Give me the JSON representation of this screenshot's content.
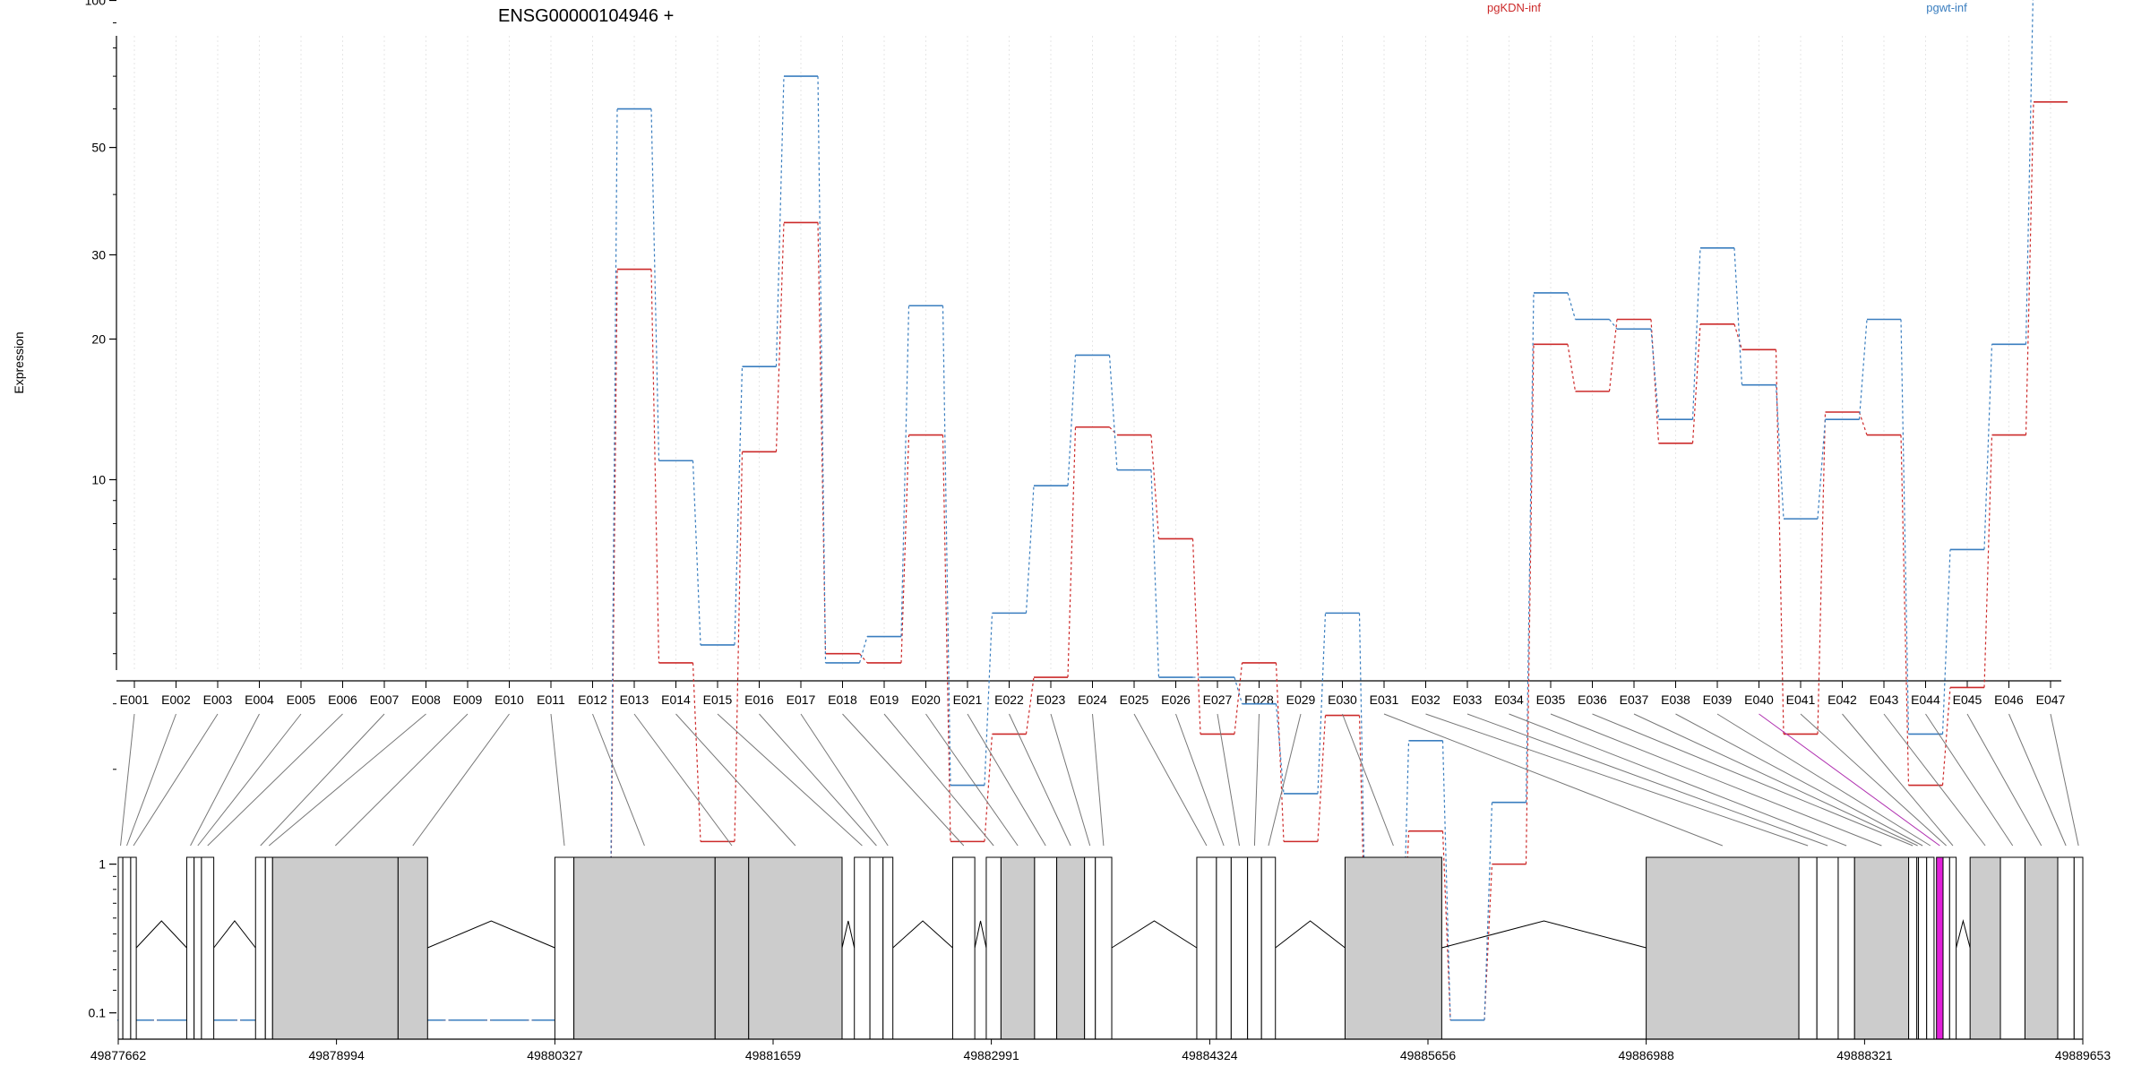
{
  "chart_data": {
    "type": "line",
    "title": "ENSG00000104946 +",
    "ylabel": "Expression",
    "xlabel": "",
    "y_scale": "log",
    "grid": true,
    "legend_placement": "top-right",
    "y_ticks": [
      {
        "value": 0.1,
        "label": "0.1"
      },
      {
        "value": 1,
        "label": "1"
      },
      {
        "value": 10,
        "label": "10"
      },
      {
        "value": 20,
        "label": "20"
      },
      {
        "value": 30,
        "label": "30"
      },
      {
        "value": 50,
        "label": "50"
      },
      {
        "value": 100,
        "label": "100"
      }
    ],
    "categories": [
      "E001",
      "E002",
      "E003",
      "E004",
      "E005",
      "E006",
      "E007",
      "E008",
      "E009",
      "E010",
      "E011",
      "E012",
      "E013",
      "E014",
      "E015",
      "E016",
      "E017",
      "E018",
      "E019",
      "E020",
      "E021",
      "E022",
      "E023",
      "E024",
      "E025",
      "E026",
      "E027",
      "E028",
      "E029",
      "E030",
      "E031",
      "E032",
      "E033",
      "E034",
      "E035",
      "E036",
      "E037",
      "E038",
      "E039",
      "E040",
      "E041",
      "E042",
      "E043",
      "E044",
      "E045",
      "E046",
      "E047"
    ],
    "series": [
      {
        "name": "pgKDN-inf",
        "color": "#cc2a2a",
        "values": [
          0.07,
          0.07,
          0.07,
          0.07,
          0.07,
          0.07,
          0.15,
          0.07,
          0.07,
          0.07,
          0.07,
          0.07,
          28,
          3.8,
          1.2,
          11.5,
          35,
          4,
          3.8,
          12.5,
          1.2,
          2.5,
          3.5,
          13,
          12.5,
          7.4,
          2.5,
          3.8,
          1.2,
          2.8,
          0.07,
          1.3,
          0.07,
          1,
          19.5,
          15.5,
          22,
          12,
          21.5,
          19,
          2.5,
          14,
          12.5,
          1.8,
          3.3,
          12.5,
          62
        ]
      },
      {
        "name": "pgwt-inf",
        "color": "#3a7ebf",
        "values": [
          0.07,
          0.07,
          0.07,
          0.07,
          0.07,
          0.07,
          0.07,
          0.07,
          0.07,
          0.07,
          0.07,
          0.07,
          60,
          11,
          4.2,
          17.5,
          70,
          3.8,
          4.4,
          23.5,
          1.8,
          5,
          9.7,
          18.5,
          10.5,
          3.5,
          3.5,
          3,
          1.7,
          5,
          0.07,
          2.4,
          0.07,
          1.6,
          25,
          22,
          21,
          13.5,
          31,
          16,
          8.2,
          13.5,
          22,
          2.5,
          7,
          19.5,
          115
        ]
      }
    ],
    "genomic_axis": {
      "tick_labels": [
        "49877662",
        "49878994",
        "49880327",
        "49881659",
        "49882991",
        "49884324",
        "49885656",
        "49886988",
        "49888321",
        "49889653"
      ],
      "tick_values": [
        49877662,
        49878994,
        49880327,
        49881659,
        49882991,
        49884324,
        49885656,
        49886988,
        49888321,
        49889653
      ],
      "exons": [
        [
          49877662,
          49877690
        ],
        [
          49877690,
          49877738
        ],
        [
          49877738,
          49877772
        ],
        [
          49878080,
          49878125
        ],
        [
          49878125,
          49878170
        ],
        [
          49878170,
          49878245
        ],
        [
          49878500,
          49878560
        ],
        [
          49878560,
          49878604
        ],
        [
          49878604,
          49879370
        ],
        [
          49879370,
          49879550
        ],
        [
          49880327,
          49880443
        ],
        [
          49880443,
          49881305
        ],
        [
          49881305,
          49881510
        ],
        [
          49881510,
          49882080
        ],
        [
          49882155,
          49882250
        ],
        [
          49882250,
          49882330
        ],
        [
          49882330,
          49882390
        ],
        [
          49882755,
          49882890
        ],
        [
          49882960,
          49883050
        ],
        [
          49883050,
          49883255
        ],
        [
          49883255,
          49883390
        ],
        [
          49883390,
          49883560
        ],
        [
          49883560,
          49883626
        ],
        [
          49883626,
          49883726
        ],
        [
          49884245,
          49884365
        ],
        [
          49884365,
          49884455
        ],
        [
          49884455,
          49884555
        ],
        [
          49884555,
          49884640
        ],
        [
          49884640,
          49884725
        ],
        [
          49885150,
          49885740
        ],
        [
          49886988,
          49887920
        ],
        [
          49887920,
          49888030
        ],
        [
          49888030,
          49888160
        ],
        [
          49888160,
          49888260
        ],
        [
          49888260,
          49888590
        ],
        [
          49888590,
          49888640
        ],
        [
          49888640,
          49888650
        ],
        [
          49888650,
          49888700
        ],
        [
          49888700,
          49888745
        ],
        [
          49888760,
          49888800
        ],
        [
          49888800,
          49888840
        ],
        [
          49888840,
          49888880
        ],
        [
          49888965,
          49889150
        ],
        [
          49889150,
          49889300
        ],
        [
          49889300,
          49889500
        ],
        [
          49889500,
          49889600
        ],
        [
          49889600,
          49889653
        ]
      ],
      "highlighted_exon": "E040",
      "highlight_color": "#e020d8"
    }
  }
}
